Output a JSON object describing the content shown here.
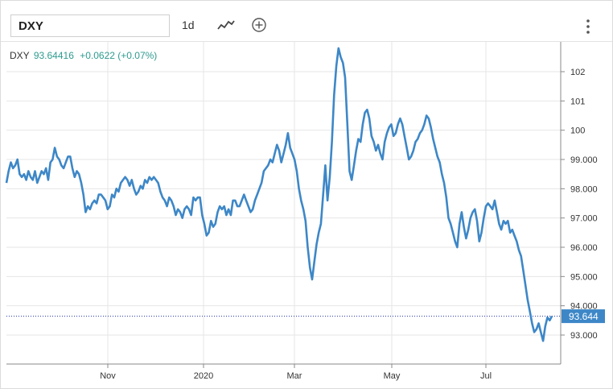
{
  "toolbar": {
    "symbol": "DXY",
    "interval": "1d",
    "chart_type_icon": "line-chart-icon",
    "add_icon": "plus-circle-icon",
    "menu_icon": "vertical-dots-icon"
  },
  "legend": {
    "symbol": "DXY",
    "value": "93.64416",
    "change": "+0.0622 (+0.07%)"
  },
  "colors": {
    "line": "#3d87c7",
    "last_price_bg": "#3d87c7",
    "legend_value": "#2e9b8f",
    "grid": "#e6e6e6"
  },
  "chart_data": {
    "type": "line",
    "title": "",
    "xlabel": "",
    "ylabel": "",
    "x_ticks": [
      "Nov",
      "2020",
      "Mar",
      "May",
      "Jul"
    ],
    "y_ticks": [
      "93.000",
      "94.000",
      "95.000",
      "96.000",
      "97.000",
      "98.000",
      "99.000",
      "100",
      "101",
      "102"
    ],
    "ylim": [
      92.0,
      103.0
    ],
    "last_price": "93.644",
    "series": [
      {
        "values": [
          98.2,
          98.6,
          98.9,
          98.7,
          98.8,
          99.0,
          98.5,
          98.4,
          98.5,
          98.3,
          98.6,
          98.4,
          98.3,
          98.6,
          98.2,
          98.4,
          98.6,
          98.5,
          98.7,
          98.3,
          98.9,
          99.0,
          99.4,
          99.1,
          99.0,
          98.8,
          98.7,
          98.9,
          99.1,
          99.1,
          98.7,
          98.4,
          98.6,
          98.5,
          98.2,
          97.8,
          97.2,
          97.4,
          97.3,
          97.5,
          97.6,
          97.5,
          97.8,
          97.8,
          97.7,
          97.6,
          97.3,
          97.4,
          97.8,
          97.7,
          98.0,
          97.9,
          98.2,
          98.3,
          98.4,
          98.3,
          98.1,
          98.3,
          98.0,
          97.8,
          97.9,
          98.1,
          98.0,
          98.3,
          98.2,
          98.4,
          98.3,
          98.4,
          98.3,
          98.2,
          97.9,
          97.7,
          97.6,
          97.4,
          97.7,
          97.6,
          97.4,
          97.1,
          97.3,
          97.2,
          97.0,
          97.3,
          97.4,
          97.3,
          97.1,
          97.7,
          97.6,
          97.7,
          97.7,
          97.1,
          96.8,
          96.4,
          96.5,
          96.9,
          96.7,
          96.8,
          97.2,
          97.4,
          97.3,
          97.4,
          97.1,
          97.3,
          97.1,
          97.6,
          97.6,
          97.4,
          97.4,
          97.6,
          97.8,
          97.6,
          97.4,
          97.2,
          97.3,
          97.6,
          97.8,
          98.0,
          98.2,
          98.6,
          98.7,
          98.8,
          99.0,
          98.9,
          99.2,
          99.5,
          99.3,
          98.9,
          99.2,
          99.5,
          99.9,
          99.4,
          99.2,
          99.0,
          98.6,
          98.0,
          97.6,
          97.3,
          96.9,
          96.0,
          95.3,
          94.9,
          95.5,
          96.1,
          96.5,
          96.8,
          97.8,
          98.8,
          97.6,
          98.4,
          99.6,
          101.2,
          102.2,
          102.8,
          102.5,
          102.3,
          101.8,
          100.2,
          98.6,
          98.3,
          98.8,
          99.3,
          99.7,
          99.6,
          100.2,
          100.6,
          100.7,
          100.4,
          99.8,
          99.6,
          99.3,
          99.5,
          99.2,
          99.0,
          99.6,
          99.9,
          100.1,
          100.2,
          99.8,
          99.9,
          100.2,
          100.4,
          100.2,
          99.8,
          99.4,
          99.0,
          99.1,
          99.3,
          99.6,
          99.7,
          99.9,
          100.0,
          100.2,
          100.5,
          100.4,
          100.1,
          99.7,
          99.4,
          99.1,
          98.9,
          98.5,
          98.2,
          97.7,
          97.0,
          96.8,
          96.5,
          96.2,
          96.0,
          96.8,
          97.2,
          96.7,
          96.3,
          96.6,
          97.0,
          97.2,
          97.3,
          96.9,
          96.2,
          96.5,
          97.0,
          97.4,
          97.5,
          97.4,
          97.3,
          97.6,
          97.2,
          96.8,
          96.6,
          96.9,
          96.8,
          96.9,
          96.5,
          96.6,
          96.4,
          96.2,
          95.9,
          95.7,
          95.2,
          94.7,
          94.2,
          93.8,
          93.4,
          93.1,
          93.2,
          93.4,
          93.1,
          92.8,
          93.3,
          93.6,
          93.5,
          93.644
        ]
      }
    ],
    "grid": true,
    "legend_position": "top-left"
  }
}
